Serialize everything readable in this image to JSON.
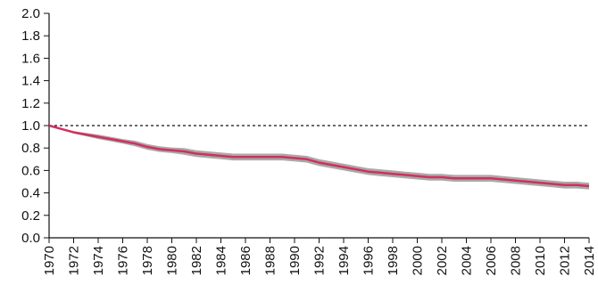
{
  "chart_data": {
    "type": "line",
    "title": "",
    "xlabel": "",
    "ylabel": "",
    "xlim": [
      1970,
      2014
    ],
    "ylim": [
      0,
      2
    ],
    "x_ticks": [
      1970,
      1972,
      1974,
      1976,
      1978,
      1980,
      1982,
      1984,
      1986,
      1988,
      1990,
      1992,
      1994,
      1996,
      1998,
      2000,
      2002,
      2004,
      2006,
      2008,
      2010,
      2012,
      2014
    ],
    "y_ticks": [
      "0.0",
      "0.2",
      "0.4",
      "0.6",
      "0.8",
      "1.0",
      "1.2",
      "1.4",
      "1.6",
      "1.8",
      "2.0"
    ],
    "reference_line": 1.0,
    "grid": false,
    "colors": {
      "line": "#d0305e",
      "band": "#a9a9a9",
      "axis": "#111111"
    },
    "series": [
      {
        "x": [
          1970,
          1971,
          1972,
          1973,
          1974,
          1975,
          1976,
          1977,
          1978,
          1979,
          1980,
          1981,
          1982,
          1983,
          1984,
          1985,
          1986,
          1987,
          1988,
          1989,
          1990,
          1991,
          1992,
          1993,
          1994,
          1995,
          1996,
          1997,
          1998,
          1999,
          2000,
          2001,
          2002,
          2003,
          2004,
          2005,
          2006,
          2007,
          2008,
          2009,
          2010,
          2011,
          2012,
          2013,
          2014
        ],
        "values": [
          1.0,
          0.97,
          0.94,
          0.92,
          0.9,
          0.88,
          0.86,
          0.84,
          0.81,
          0.79,
          0.78,
          0.77,
          0.75,
          0.74,
          0.73,
          0.72,
          0.72,
          0.72,
          0.72,
          0.72,
          0.71,
          0.7,
          0.67,
          0.65,
          0.63,
          0.61,
          0.59,
          0.58,
          0.57,
          0.56,
          0.55,
          0.54,
          0.54,
          0.53,
          0.53,
          0.53,
          0.53,
          0.52,
          0.51,
          0.5,
          0.49,
          0.48,
          0.47,
          0.47,
          0.46
        ],
        "lower": [
          1.0,
          0.965,
          0.93,
          0.905,
          0.88,
          0.86,
          0.84,
          0.815,
          0.785,
          0.765,
          0.755,
          0.74,
          0.72,
          0.71,
          0.7,
          0.69,
          0.69,
          0.69,
          0.69,
          0.69,
          0.68,
          0.67,
          0.64,
          0.62,
          0.6,
          0.58,
          0.56,
          0.55,
          0.54,
          0.53,
          0.52,
          0.51,
          0.51,
          0.5,
          0.5,
          0.5,
          0.5,
          0.49,
          0.48,
          0.47,
          0.46,
          0.45,
          0.44,
          0.44,
          0.43
        ],
        "upper": [
          1.0,
          0.975,
          0.95,
          0.935,
          0.92,
          0.9,
          0.88,
          0.865,
          0.835,
          0.815,
          0.805,
          0.8,
          0.78,
          0.77,
          0.76,
          0.75,
          0.75,
          0.75,
          0.75,
          0.75,
          0.74,
          0.73,
          0.7,
          0.68,
          0.66,
          0.64,
          0.62,
          0.61,
          0.6,
          0.59,
          0.58,
          0.57,
          0.57,
          0.56,
          0.56,
          0.56,
          0.56,
          0.55,
          0.54,
          0.53,
          0.52,
          0.51,
          0.5,
          0.5,
          0.49
        ]
      }
    ]
  }
}
